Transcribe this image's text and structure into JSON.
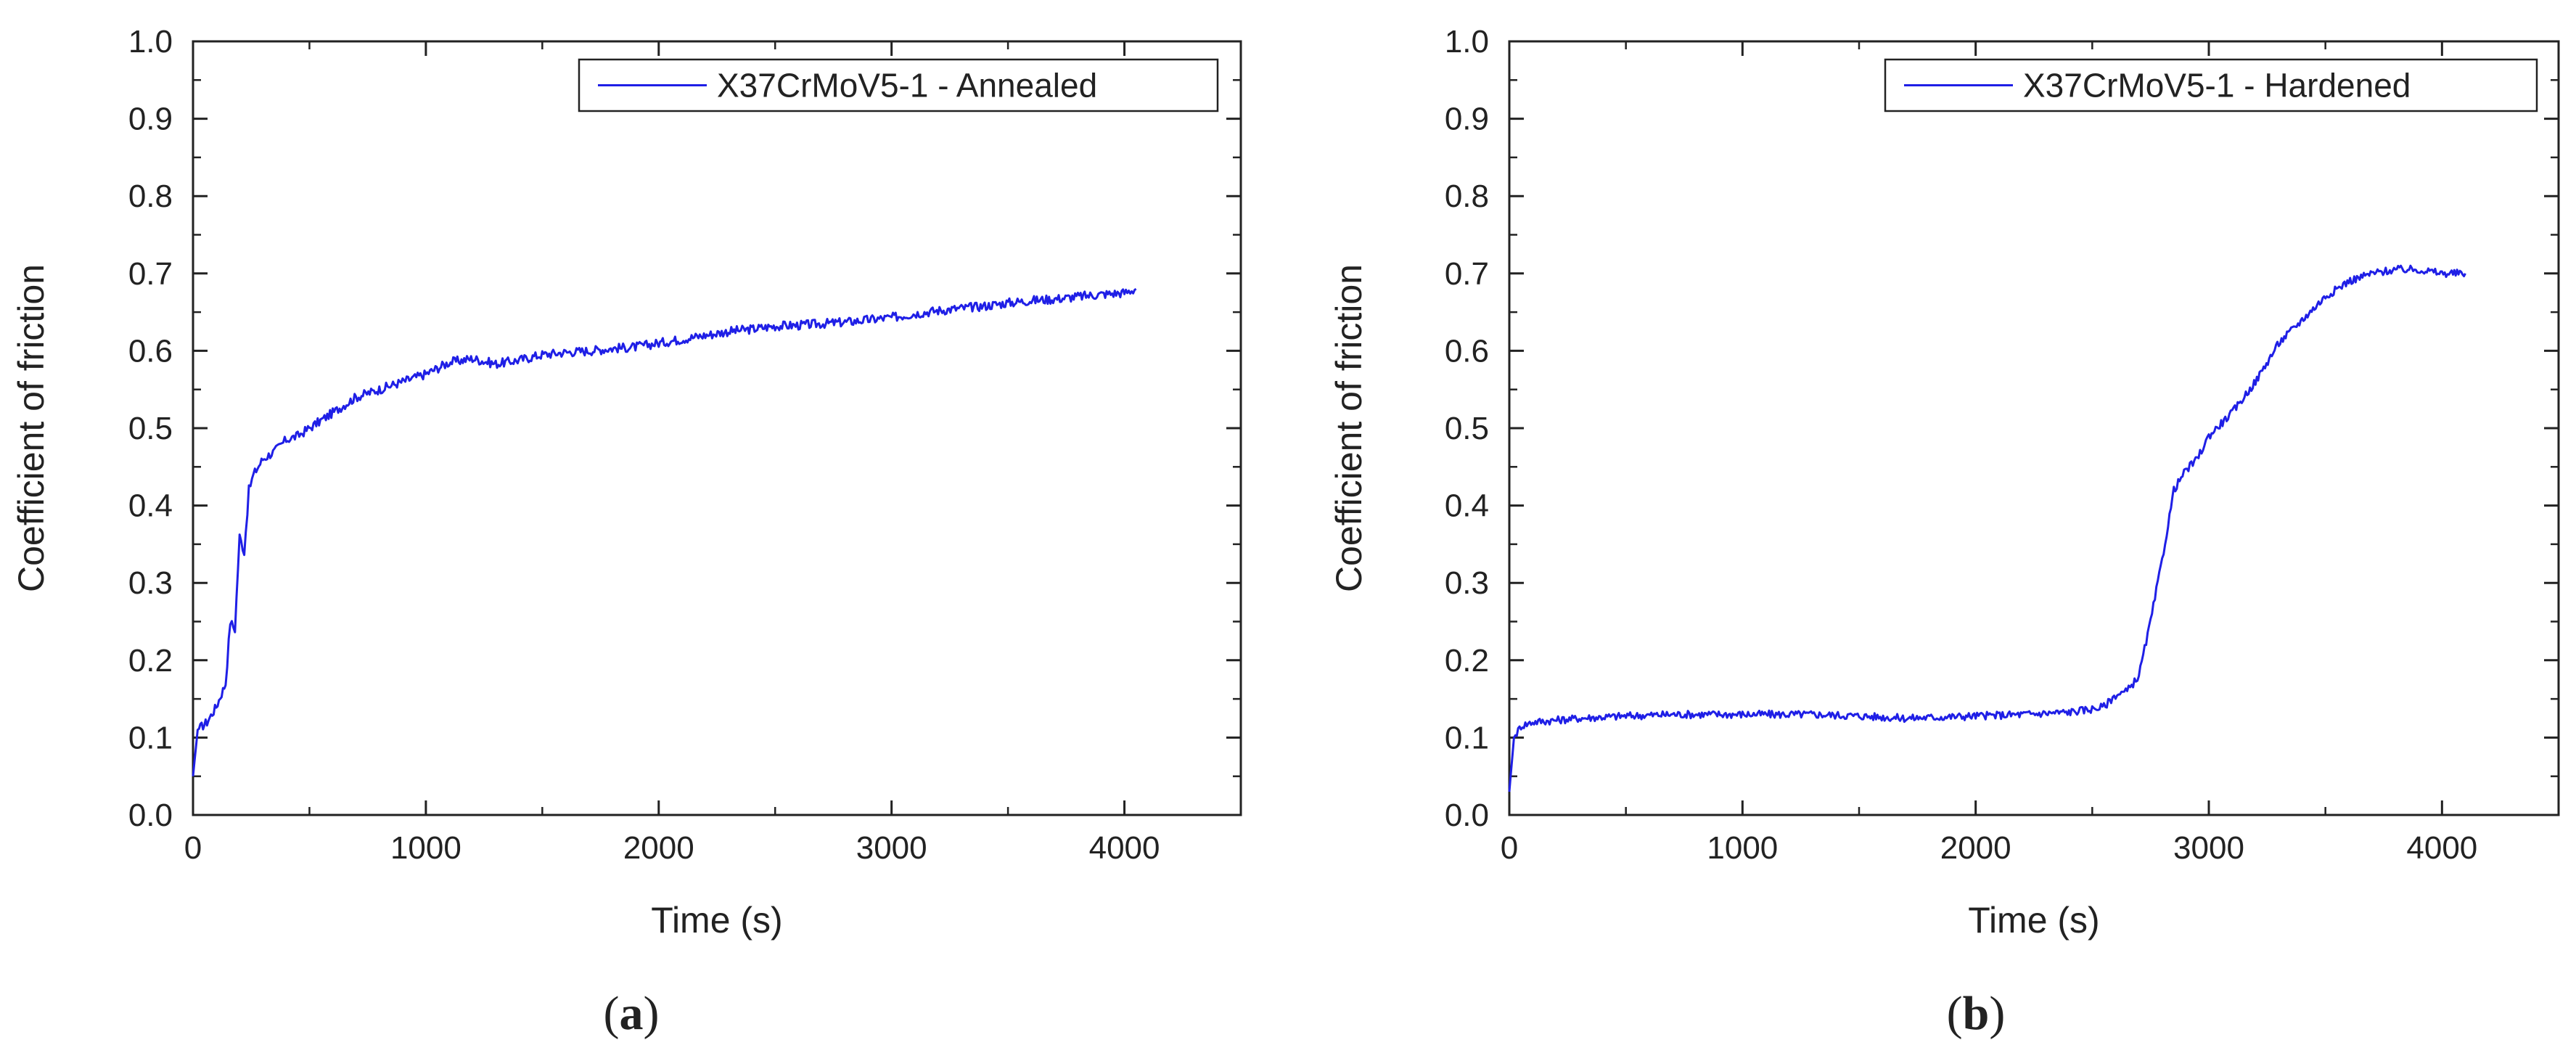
{
  "chart_data": [
    {
      "type": "line",
      "panel_label": "a",
      "xlabel": "Time (s)",
      "ylabel": "Coefficient of friction",
      "xlim": [
        0,
        4500
      ],
      "ylim": [
        0.0,
        1.0
      ],
      "xticks": [
        "0",
        "1000",
        "2000",
        "3000",
        "4000"
      ],
      "yticks": [
        "0.0",
        "0.1",
        "0.2",
        "0.3",
        "0.4",
        "0.5",
        "0.6",
        "0.7",
        "0.8",
        "0.9",
        "1.0"
      ],
      "legend_position": "top-right",
      "grid": false,
      "color": "#1f1fe6",
      "series": [
        {
          "name": "X37CrMoV5-1 - Annealed",
          "x": [
            0,
            20,
            60,
            100,
            140,
            160,
            180,
            200,
            220,
            240,
            260,
            300,
            350,
            400,
            450,
            500,
            600,
            700,
            800,
            900,
            1000,
            1100,
            1200,
            1300,
            1400,
            1500,
            1600,
            1700,
            1800,
            1900,
            2000,
            2100,
            2200,
            2300,
            2400,
            2500,
            2600,
            2700,
            2800,
            2900,
            3000,
            3100,
            3200,
            3300,
            3400,
            3500,
            3600,
            3700,
            3800,
            3900,
            4000,
            4050
          ],
          "y": [
            0.05,
            0.11,
            0.12,
            0.14,
            0.17,
            0.25,
            0.24,
            0.36,
            0.34,
            0.42,
            0.44,
            0.46,
            0.47,
            0.485,
            0.49,
            0.5,
            0.52,
            0.54,
            0.55,
            0.56,
            0.57,
            0.585,
            0.59,
            0.583,
            0.588,
            0.595,
            0.598,
            0.6,
            0.603,
            0.605,
            0.61,
            0.615,
            0.62,
            0.625,
            0.628,
            0.632,
            0.633,
            0.635,
            0.637,
            0.64,
            0.643,
            0.648,
            0.652,
            0.655,
            0.658,
            0.662,
            0.665,
            0.667,
            0.67,
            0.673,
            0.675,
            0.68
          ],
          "noise": 0.006
        }
      ]
    },
    {
      "type": "line",
      "panel_label": "b",
      "xlabel": "Time (s)",
      "ylabel": "Coefficient of friction",
      "xlim": [
        0,
        4500
      ],
      "ylim": [
        0.0,
        1.0
      ],
      "xticks": [
        "0",
        "1000",
        "2000",
        "3000",
        "4000"
      ],
      "yticks": [
        "0.0",
        "0.1",
        "0.2",
        "0.3",
        "0.4",
        "0.5",
        "0.6",
        "0.7",
        "0.8",
        "0.9",
        "1.0"
      ],
      "legend_position": "top-right",
      "grid": false,
      "color": "#1f1fe6",
      "series": [
        {
          "name": "X37CrMoV5-1 - Hardened",
          "x": [
            0,
            20,
            50,
            100,
            300,
            500,
            700,
            1000,
            1300,
            1500,
            1700,
            1900,
            2000,
            2200,
            2400,
            2500,
            2550,
            2600,
            2650,
            2700,
            2750,
            2800,
            2850,
            2900,
            2950,
            3000,
            3100,
            3200,
            3300,
            3400,
            3500,
            3600,
            3700,
            3800,
            3900,
            4000,
            4100
          ],
          "y": [
            0.03,
            0.1,
            0.115,
            0.12,
            0.125,
            0.128,
            0.13,
            0.13,
            0.13,
            0.128,
            0.125,
            0.127,
            0.128,
            0.13,
            0.133,
            0.137,
            0.14,
            0.155,
            0.16,
            0.18,
            0.25,
            0.33,
            0.42,
            0.445,
            0.46,
            0.49,
            0.52,
            0.56,
            0.61,
            0.64,
            0.67,
            0.69,
            0.7,
            0.705,
            0.705,
            0.7,
            0.7
          ],
          "noise": 0.005
        }
      ]
    }
  ]
}
